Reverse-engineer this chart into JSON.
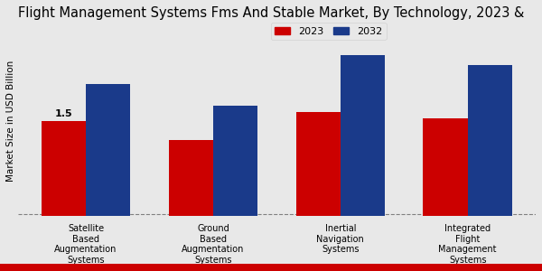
{
  "title": "Flight Management Systems Fms And Stable Market, By Technology, 2023 &",
  "ylabel": "Market Size in USD Billion",
  "categories": [
    "Satellite\nBased\nAugmentation\nSystems",
    "Ground\nBased\nAugmentation\nSystems",
    "Inertial\nNavigation\nSystems",
    "Integrated\nFlight\nManagement\nSystems"
  ],
  "values_2023": [
    1.5,
    1.2,
    1.65,
    1.55
  ],
  "values_2032": [
    2.1,
    1.75,
    2.55,
    2.4
  ],
  "color_2023": "#cc0000",
  "color_2032": "#1a3a8a",
  "bar_width": 0.35,
  "annotation": "1.5",
  "background_color": "#e8e8e8",
  "bottom_bar_color": "#cc0000",
  "ylim": [
    0,
    3.0
  ],
  "legend_labels": [
    "2023",
    "2032"
  ],
  "title_fontsize": 10.5,
  "label_fontsize": 7.0,
  "ylabel_fontsize": 7.5
}
